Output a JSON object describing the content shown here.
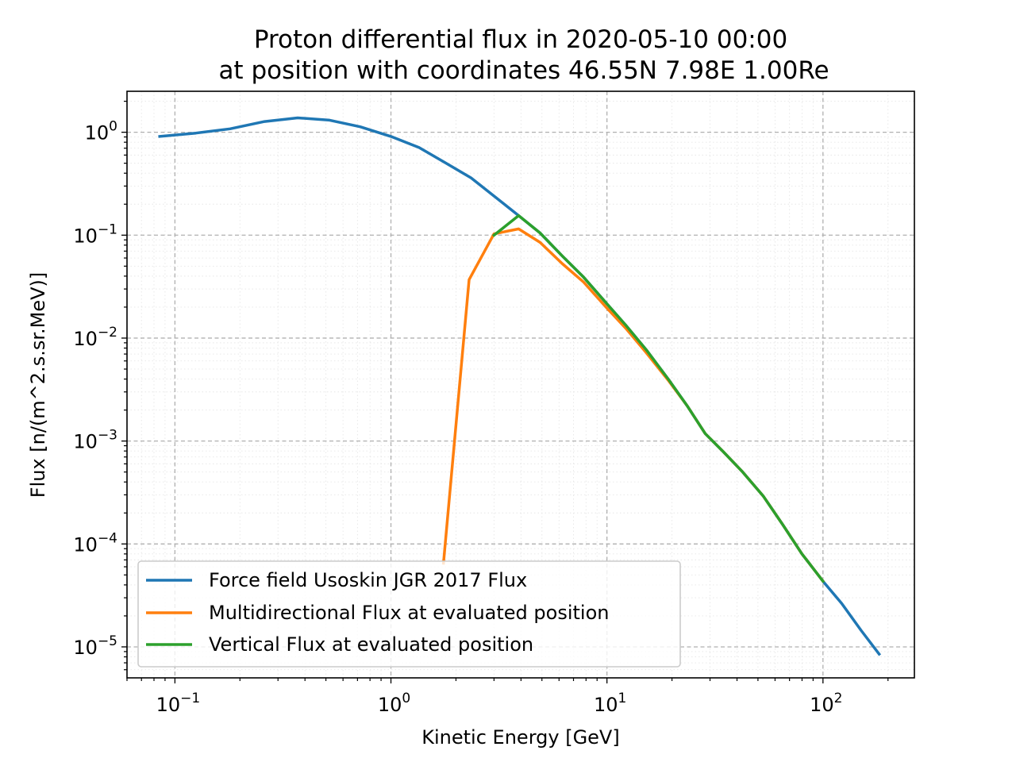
{
  "chart_data": {
    "type": "line",
    "title": "Proton differential flux in 2020-05-10 00:00",
    "subtitle": "at position with coordinates 46.55N 7.98E 1.00Re",
    "xlabel": "Kinetic Energy [GeV]",
    "ylabel": "Flux [n/(m^2.s.sr.MeV)]",
    "xscale": "log",
    "yscale": "log",
    "xlim": [
      0.06,
      265
    ],
    "ylim": [
      5e-06,
      2.5
    ],
    "grid": "dashed major and dotted minor gridlines",
    "legend_position": "lower-left",
    "x_ticks": [
      {
        "value": 0.1,
        "base": "10",
        "exp": "−1"
      },
      {
        "value": 1,
        "base": "10",
        "exp": "0"
      },
      {
        "value": 10,
        "base": "10",
        "exp": "1"
      },
      {
        "value": 100,
        "base": "10",
        "exp": "2"
      }
    ],
    "y_ticks": [
      {
        "value": 1,
        "base": "10",
        "exp": "0"
      },
      {
        "value": 0.1,
        "base": "10",
        "exp": "−1"
      },
      {
        "value": 0.01,
        "base": "10",
        "exp": "−2"
      },
      {
        "value": 0.001,
        "base": "10",
        "exp": "−3"
      },
      {
        "value": 0.0001,
        "base": "10",
        "exp": "−4"
      },
      {
        "value": 1e-05,
        "base": "10",
        "exp": "−5"
      }
    ],
    "series": [
      {
        "name": "Force field Usoskin JGR 2017 Flux",
        "color": "#1f77b4",
        "x": [
          0.085,
          0.125,
          0.18,
          0.26,
          0.37,
          0.52,
          0.72,
          1.0,
          1.35,
          1.8,
          2.35,
          3.0,
          3.9,
          4.9,
          6.2,
          7.8,
          9.9,
          12.2,
          15.2,
          19.2,
          23.5,
          28.5,
          34.5,
          42.5,
          53,
          65,
          80,
          100,
          122,
          150,
          182
        ],
        "y": [
          0.91,
          0.98,
          1.08,
          1.27,
          1.38,
          1.31,
          1.13,
          0.91,
          0.71,
          0.5,
          0.36,
          0.24,
          0.155,
          0.105,
          0.063,
          0.039,
          0.022,
          0.0134,
          0.0077,
          0.004,
          0.0022,
          0.00118,
          0.00079,
          0.0005,
          0.00029,
          0.000155,
          8e-05,
          4.35e-05,
          2.65e-05,
          1.45e-05,
          8.5e-06
        ]
      },
      {
        "name": "Multidirectional Flux at evaluated position",
        "color": "#ff7f0e",
        "x": [
          1.75,
          2.3,
          3.0,
          3.9,
          4.9,
          6.2,
          7.8,
          9.9,
          12.2,
          15.2,
          19.2,
          23.5,
          28.5,
          34.5,
          42.5,
          53,
          65,
          80,
          100
        ],
        "y": [
          6.5e-05,
          0.037,
          0.103,
          0.115,
          0.085,
          0.053,
          0.035,
          0.02,
          0.0125,
          0.0072,
          0.0039,
          0.0022,
          0.00118,
          0.00079,
          0.0005,
          0.00029,
          0.000155,
          8e-05,
          4.35e-05
        ]
      },
      {
        "name": "Vertical Flux at evaluated position",
        "color": "#2ca02c",
        "x": [
          3.0,
          3.9,
          4.9,
          6.2,
          7.8,
          9.9,
          12.2,
          15.2,
          19.2,
          23.5,
          28.5,
          34.5,
          42.5,
          53,
          65,
          80,
          100
        ],
        "y": [
          0.1,
          0.155,
          0.105,
          0.063,
          0.039,
          0.022,
          0.0134,
          0.0077,
          0.004,
          0.0022,
          0.00118,
          0.00079,
          0.0005,
          0.00029,
          0.000155,
          8e-05,
          4.35e-05
        ]
      }
    ]
  }
}
